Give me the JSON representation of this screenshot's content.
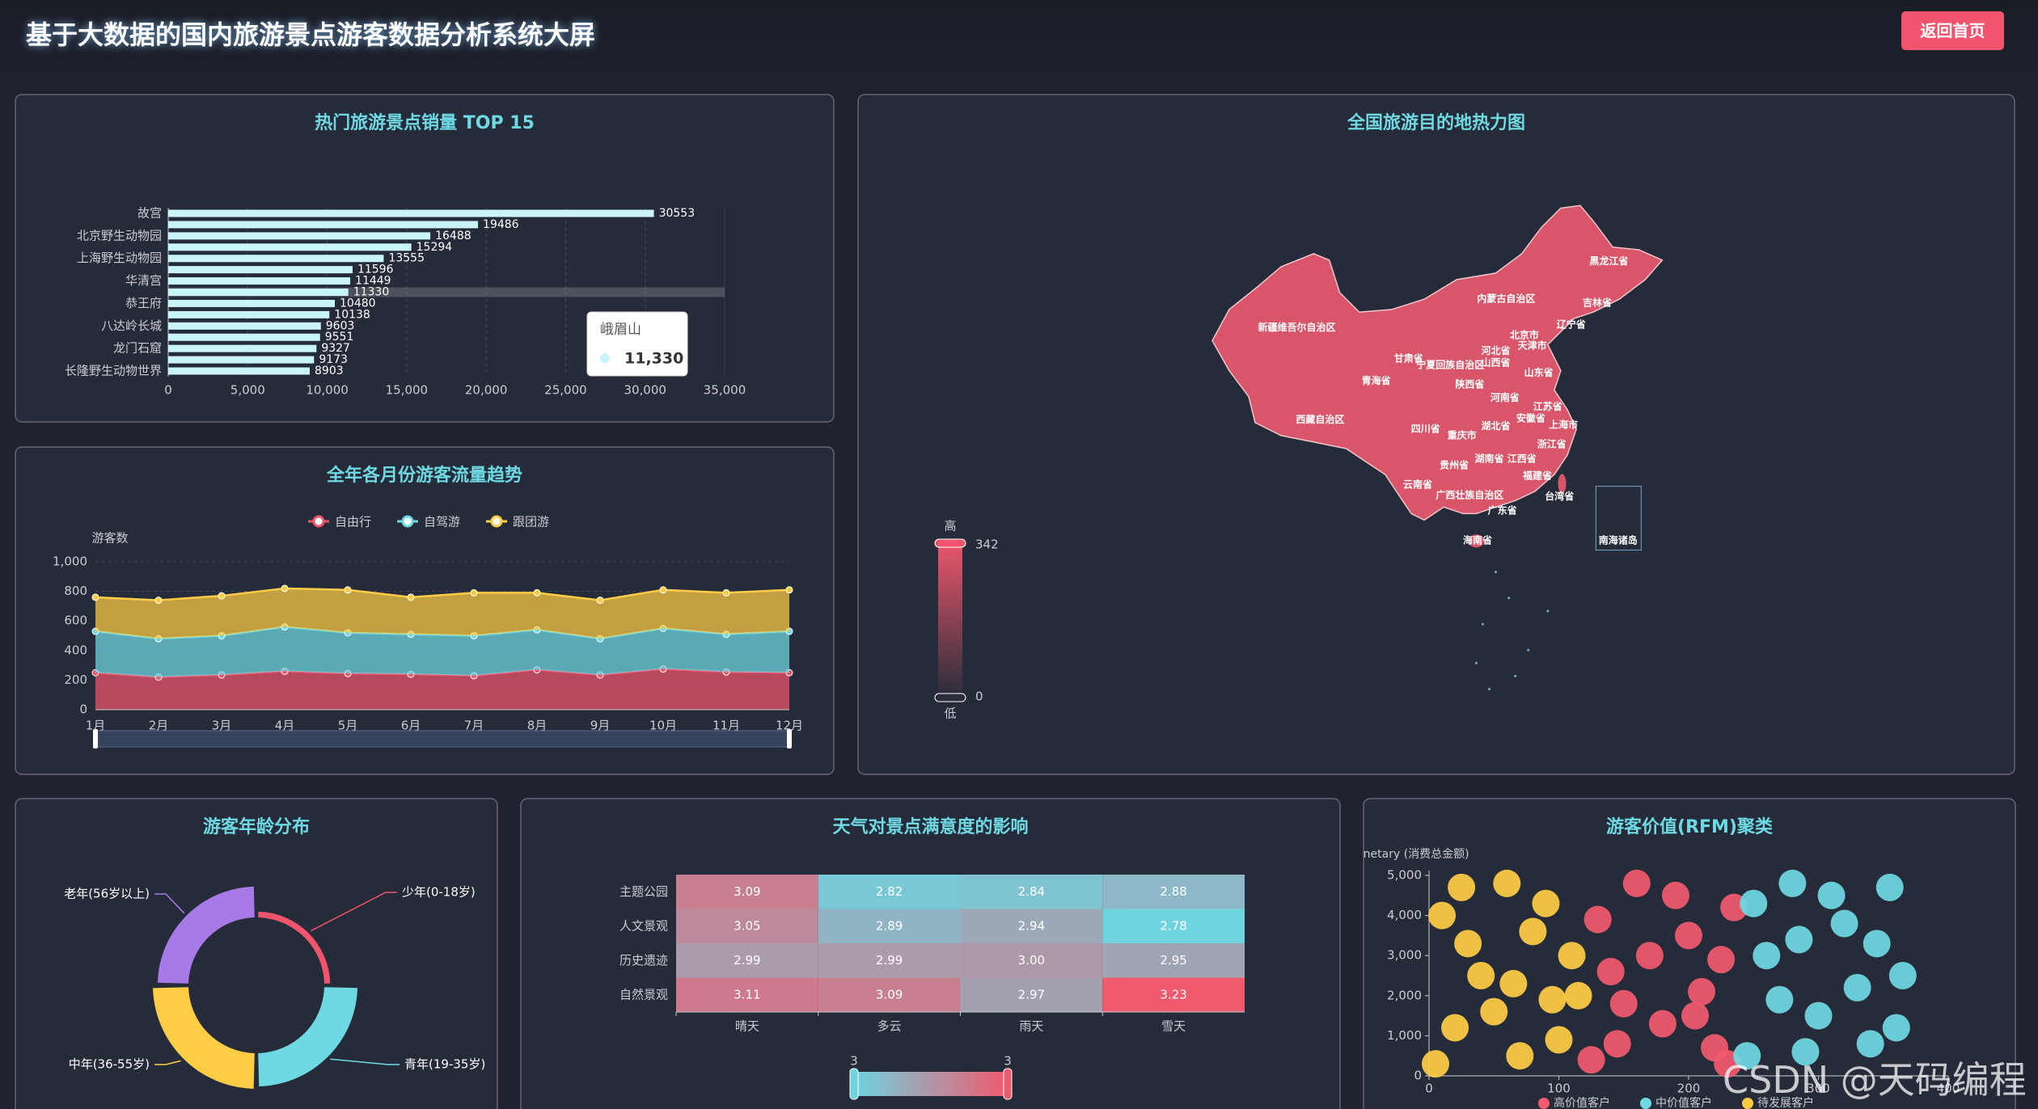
{
  "header": {
    "title": "基于大数据的国内旅游景点游客数据分析系统大屏",
    "button": "返回首页"
  },
  "watermark": "CSDN @天码编程",
  "chart_data": [
    {
      "type": "bar",
      "title": "热门旅游景点销量 TOP 15",
      "categories": [
        "故宫",
        null,
        "北京野生动物园",
        null,
        "上海野生动物园",
        null,
        "华清宫",
        null,
        "恭王府",
        null,
        "八达岭长城",
        null,
        "龙门石窟",
        null,
        "长隆野生动物世界"
      ],
      "values": [
        30553,
        19486,
        16488,
        15294,
        13555,
        11596,
        11449,
        11330,
        10480,
        10138,
        9603,
        9551,
        9327,
        9173,
        8903
      ],
      "color": "#c8f4fa",
      "xlim": [
        0,
        35000
      ],
      "xticks": [
        0,
        {
          "value": 5000,
          "label": "5,000"
        },
        {
          "value": 10000,
          "label": "10,000"
        },
        {
          "value": 15000,
          "label": "15,000"
        },
        {
          "value": 20000,
          "label": "20,000"
        },
        {
          "value": 25000,
          "label": "25,000"
        },
        {
          "value": 30000,
          "label": "30,000"
        },
        {
          "value": 35000,
          "label": "35,000"
        }
      ],
      "grid": true,
      "tooltip": {
        "category": "峨眉山",
        "value": 11330,
        "label": "11,330"
      }
    },
    {
      "type": "line",
      "stacked": true,
      "area": true,
      "title": "全年各月份游客流量趋势",
      "y_label": "游客数",
      "categories": [
        "1月",
        "2月",
        "3月",
        "4月",
        "5月",
        "6月",
        "7月",
        "8月",
        "9月",
        "10月",
        "11月",
        "12月"
      ],
      "series": [
        {
          "name": "自由行",
          "color": "#f0556d",
          "values": [
            250,
            220,
            235,
            260,
            245,
            240,
            230,
            270,
            235,
            275,
            255,
            250
          ]
        },
        {
          "name": "自驾游",
          "color": "#6fd9e3",
          "values": [
            280,
            260,
            265,
            300,
            275,
            270,
            270,
            270,
            245,
            275,
            255,
            280
          ]
        },
        {
          "name": "跟团游",
          "color": "#ffcd45",
          "values": [
            230,
            260,
            270,
            260,
            290,
            250,
            290,
            250,
            260,
            260,
            280,
            280
          ]
        }
      ],
      "ylim": [
        0,
        1000
      ],
      "yticks": [
        0,
        200,
        400,
        600,
        800,
        {
          "value": 1000,
          "label": "1,000"
        }
      ],
      "grid": true,
      "legend": "top"
    },
    {
      "type": "map",
      "title": "全国旅游目的地热力图",
      "color": "#d9566a",
      "regions": [
        "新疆维吾尔自治区",
        "西藏自治区",
        "青海省",
        "甘肃省",
        "内蒙古自治区",
        "黑龙江省",
        "吉林省",
        "辽宁省",
        "北京市",
        "天津市",
        "河北省",
        "山西省",
        "宁夏回族自治区",
        "陕西省",
        "山东省",
        "河南省",
        "江苏省",
        "安徽省",
        "上海市",
        "湖北省",
        "四川省",
        "重庆市",
        "浙江省",
        "湖南省",
        "江西省",
        "贵州省",
        "福建省",
        "云南省",
        "广西壮族自治区",
        "广东省",
        "台湾省",
        "海南省",
        "南海诸岛"
      ],
      "visual_map": {
        "range": [
          0,
          342
        ],
        "high_label": "高",
        "low_label": "低",
        "colors": [
          "#e8566a",
          "#2a2d3a"
        ]
      }
    },
    {
      "type": "pie",
      "rose": true,
      "title": "游客年龄分布",
      "categories": [
        "少年(0-18岁)",
        "青年(19-35岁)",
        "中年(36-55岁)",
        "老年(56岁以上)"
      ],
      "values": [
        5,
        28,
        30,
        26
      ],
      "colors": [
        "#f0556d",
        "#6fd9e3",
        "#ffcd45",
        "#a77ae8"
      ]
    },
    {
      "type": "heatmap",
      "title": "天气对景点满意度的影响",
      "rows": [
        "主题公园",
        "人文景观",
        "历史遗迹",
        "自然景观"
      ],
      "columns": [
        "晴天",
        "多云",
        "雨天",
        "雪天"
      ],
      "values": [
        [
          3.09,
          2.82,
          2.84,
          2.88
        ],
        [
          3.05,
          2.89,
          2.94,
          2.78
        ],
        [
          2.99,
          2.99,
          3.0,
          2.95
        ],
        [
          3.11,
          3.09,
          2.97,
          3.23
        ]
      ],
      "value_labels": [
        [
          "3.09",
          "2.82",
          "2.84",
          "2.88"
        ],
        [
          "3.05",
          "2.89",
          "2.94",
          "2.78"
        ],
        [
          "2.99",
          "2.99",
          "3.00",
          "2.95"
        ],
        [
          "3.11",
          "3.09",
          "2.97",
          "3.23"
        ]
      ],
      "visual_map": {
        "range": [
          {
            "value": 2.78,
            "label": "3"
          },
          {
            "value": 3.23,
            "label": "3"
          }
        ],
        "colors": [
          "#6fd3e0",
          "#f05a6e"
        ]
      }
    },
    {
      "type": "scatter",
      "title": "游客价值(RFM)聚类",
      "y_label": "Monetary (消费总金额)",
      "xlim": [
        0,
        400
      ],
      "xticks": [
        0,
        100,
        200,
        300,
        400
      ],
      "ylim": [
        0,
        5000
      ],
      "yticks": [
        0,
        {
          "value": 1000,
          "label": "1,000"
        },
        {
          "value": 2000,
          "label": "2,000"
        },
        {
          "value": 3000,
          "label": "3,000"
        },
        {
          "value": 4000,
          "label": "4,000"
        },
        {
          "value": 5000,
          "label": "5,000"
        }
      ],
      "legend": "bottom",
      "series": [
        {
          "name": "高价值客户",
          "color": "#f25a6e",
          "x": [
            125,
            140,
            160,
            180,
            200,
            220,
            235,
            130,
            150,
            170,
            190,
            210,
            230,
            145,
            205,
            225
          ],
          "y": [
            400,
            2600,
            4800,
            1300,
            3500,
            700,
            4200,
            3900,
            1800,
            3000,
            4500,
            2100,
            300,
            800,
            1500,
            2900
          ]
        },
        {
          "name": "中价值客户",
          "color": "#6fd9e3",
          "x": [
            245,
            260,
            280,
            300,
            320,
            340,
            365,
            250,
            270,
            290,
            310,
            330,
            355,
            360,
            285,
            345
          ],
          "y": [
            500,
            3000,
            4800,
            1500,
            3800,
            800,
            2500,
            4300,
            1900,
            600,
            4500,
            2200,
            4700,
            1200,
            3400,
            3300
          ]
        },
        {
          "name": "待发展客户",
          "color": "#ffcd45",
          "x": [
            5,
            20,
            40,
            60,
            80,
            100,
            115,
            10,
            30,
            50,
            70,
            90,
            110,
            25,
            65,
            95
          ],
          "y": [
            300,
            1200,
            2500,
            4800,
            3600,
            900,
            2000,
            4000,
            3300,
            1600,
            500,
            4300,
            3000,
            4700,
            2300,
            1900
          ]
        }
      ]
    }
  ]
}
